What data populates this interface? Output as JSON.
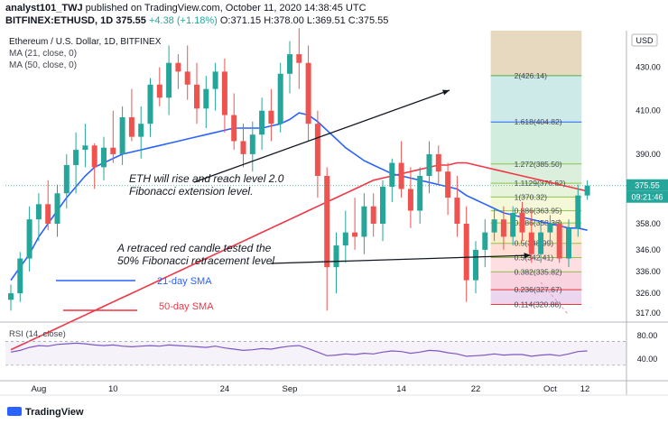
{
  "header": {
    "author": "analyst101_TWJ",
    "published": "published on TradingView.com, October 11, 2020 14:38:45 UTC",
    "symbol": "BITFINEX:ETHUSD, 1D",
    "last": "375.55",
    "change": "+4.38 (+1.18%)",
    "ohlc": "O:371.15 H:378.00 L:369.51 C:375.55"
  },
  "legend": {
    "title": "Ethereum / U.S. Dollar, 1D, BITFINEX",
    "ma21": "MA (21, close, 0)",
    "ma50": "MA (50, close, 0)"
  },
  "annotations": {
    "rise_line1": "ETH will rise and reach level 2.0",
    "rise_line2": "Fibonacci extension level.",
    "retrace_line1": "A retraced red candle tested the",
    "retrace_line2": "50% Fibonacci retracement level",
    "sma21": "21-day SMA",
    "sma50": "50-day SMA"
  },
  "rsi_label": "RSI (14, close)",
  "price_axis": {
    "currency": "USD",
    "labels": [
      "430.00",
      "410.00",
      "390.00",
      "358.00",
      "346.00",
      "336.00",
      "326.00",
      "317.00"
    ],
    "current_price": "375.55",
    "countdown": "09:21:46",
    "rsi_labels": [
      "80.00",
      "40.00"
    ]
  },
  "time_axis": [
    "Aug",
    "10",
    "24",
    "Sep",
    "14",
    "22",
    "Oct",
    "12"
  ],
  "branding": "TradingView",
  "colors": {
    "up": "#26a69a",
    "down": "#ef5350",
    "ma21": "#2962ff",
    "ma50": "#f23645",
    "rsi": "#7e57c2",
    "fib_green": "#4caf50",
    "fib_red": "#e53935",
    "fib_blue": "#2962ff"
  },
  "chart_data": {
    "type": "candlestick",
    "title": "Ethereum / U.S. Dollar, 1D, BITFINEX",
    "ylim": [
      314,
      446
    ],
    "candles": [
      [
        323,
        330,
        318,
        326
      ],
      [
        326,
        345,
        322,
        342
      ],
      [
        342,
        366,
        336,
        360
      ],
      [
        360,
        372,
        350,
        367
      ],
      [
        367,
        378,
        355,
        358
      ],
      [
        358,
        376,
        352,
        372
      ],
      [
        372,
        390,
        365,
        385
      ],
      [
        385,
        400,
        372,
        392
      ],
      [
        392,
        404,
        384,
        394
      ],
      [
        394,
        395,
        374,
        384
      ],
      [
        384,
        398,
        378,
        393
      ],
      [
        393,
        410,
        386,
        390
      ],
      [
        390,
        412,
        385,
        407
      ],
      [
        407,
        420,
        396,
        398
      ],
      [
        398,
        412,
        388,
        404
      ],
      [
        404,
        425,
        398,
        422
      ],
      [
        422,
        430,
        412,
        416
      ],
      [
        416,
        440,
        408,
        432
      ],
      [
        432,
        436,
        420,
        428
      ],
      [
        428,
        440,
        415,
        422
      ],
      [
        422,
        432,
        404,
        411
      ],
      [
        411,
        426,
        402,
        420
      ],
      [
        420,
        432,
        410,
        428
      ],
      [
        428,
        434,
        400,
        408
      ],
      [
        408,
        418,
        392,
        396
      ],
      [
        396,
        404,
        384,
        390
      ],
      [
        390,
        405,
        382,
        399
      ],
      [
        399,
        416,
        392,
        410
      ],
      [
        410,
        420,
        396,
        404
      ],
      [
        404,
        432,
        400,
        427
      ],
      [
        427,
        442,
        418,
        436
      ],
      [
        436,
        448,
        420,
        432
      ],
      [
        432,
        440,
        396,
        404
      ],
      [
        404,
        410,
        370,
        380
      ],
      [
        380,
        384,
        318,
        338
      ],
      [
        338,
        354,
        326,
        348
      ],
      [
        348,
        364,
        340,
        354
      ],
      [
        354,
        370,
        346,
        352
      ],
      [
        352,
        372,
        344,
        366
      ],
      [
        366,
        372,
        352,
        358
      ],
      [
        358,
        378,
        350,
        375
      ],
      [
        375,
        388,
        368,
        386
      ],
      [
        386,
        396,
        370,
        374
      ],
      [
        374,
        384,
        356,
        364
      ],
      [
        364,
        384,
        358,
        380
      ],
      [
        380,
        396,
        372,
        390
      ],
      [
        390,
        394,
        376,
        382
      ],
      [
        382,
        386,
        362,
        370
      ],
      [
        370,
        380,
        352,
        358
      ],
      [
        358,
        366,
        322,
        332
      ],
      [
        332,
        350,
        326,
        346
      ],
      [
        346,
        360,
        338,
        354
      ],
      [
        354,
        365,
        350,
        360
      ],
      [
        360,
        366,
        346,
        352
      ],
      [
        352,
        366,
        348,
        363
      ],
      [
        363,
        368,
        350,
        354
      ],
      [
        354,
        364,
        340,
        344
      ],
      [
        344,
        358,
        340,
        354
      ],
      [
        354,
        362,
        348,
        358
      ],
      [
        358,
        360,
        340,
        342
      ],
      [
        342,
        360,
        338,
        356
      ],
      [
        356,
        376,
        352,
        371
      ],
      [
        371,
        378,
        369,
        375.55
      ]
    ],
    "ma21": [
      332,
      338,
      344,
      352,
      358,
      364,
      370,
      375,
      380,
      384,
      386,
      388,
      390,
      391,
      392,
      393,
      394,
      395,
      396,
      397,
      398,
      399,
      400,
      401,
      402,
      402,
      402,
      402,
      403,
      404,
      406,
      409,
      408,
      405,
      401,
      397,
      393,
      390,
      387,
      385,
      383,
      381,
      380,
      379,
      378,
      377,
      376,
      375,
      374,
      371,
      369,
      367,
      365,
      363,
      362,
      361,
      360,
      359,
      358,
      357,
      356,
      356,
      355
    ],
    "ma50": [
      300,
      302,
      304,
      306,
      308,
      310,
      312,
      314,
      316,
      318,
      320,
      322,
      324,
      326,
      328,
      330,
      332,
      334,
      336,
      338,
      340,
      342,
      344,
      346,
      348,
      350,
      352,
      354,
      356,
      358,
      360,
      362,
      364,
      366,
      368,
      370,
      372,
      374,
      376,
      378,
      379,
      380,
      381,
      382,
      383,
      384,
      385,
      385,
      386,
      386,
      385,
      384,
      383,
      382,
      381,
      380,
      379,
      378,
      377,
      376,
      375,
      374,
      373
    ],
    "fibonacci": {
      "anchor_high": 370.32,
      "anchor_low": 324.86,
      "levels": [
        {
          "label": "2(426.14)",
          "ratio": 2,
          "value": 426.14
        },
        {
          "label": "1.618(404.82)",
          "ratio": 1.618,
          "value": 404.82
        },
        {
          "label": "1.272(385.50)",
          "ratio": 1.272,
          "value": 385.5
        },
        {
          "label": "1.1129(376.62)",
          "ratio": 1.1129,
          "value": 376.62
        },
        {
          "label": "1(370.32)",
          "ratio": 1,
          "value": 370.32
        },
        {
          "label": "0.886(363.95)",
          "ratio": 0.886,
          "value": 363.95
        },
        {
          "label": "0.786(358.36)",
          "ratio": 0.786,
          "value": 358.36
        },
        {
          "label": "0.5(348.99)",
          "ratio": 0.5,
          "value": 348.99
        },
        {
          "label": "0.5(342.41)",
          "ratio": 0.5,
          "value": 342.41
        },
        {
          "label": "0.382(335.82)",
          "ratio": 0.382,
          "value": 335.82
        },
        {
          "label": "0.236(327.67)",
          "ratio": 0.236,
          "value": 327.67
        },
        {
          "label": "0.114(320.86)",
          "ratio": 0.114,
          "value": 320.86
        }
      ]
    },
    "rsi": [
      52,
      55,
      60,
      63,
      62,
      65,
      66,
      67,
      66,
      64,
      63,
      64,
      62,
      61,
      62,
      63,
      62,
      64,
      63,
      62,
      61,
      60,
      62,
      59,
      57,
      55,
      56,
      58,
      57,
      60,
      62,
      63,
      58,
      52,
      46,
      47,
      49,
      48,
      50,
      49,
      52,
      54,
      53,
      50,
      52,
      55,
      54,
      51,
      49,
      45,
      46,
      47,
      49,
      47,
      48,
      48,
      45,
      47,
      48,
      46,
      49,
      53,
      54
    ],
    "rsi_ylim": [
      10,
      95
    ]
  }
}
